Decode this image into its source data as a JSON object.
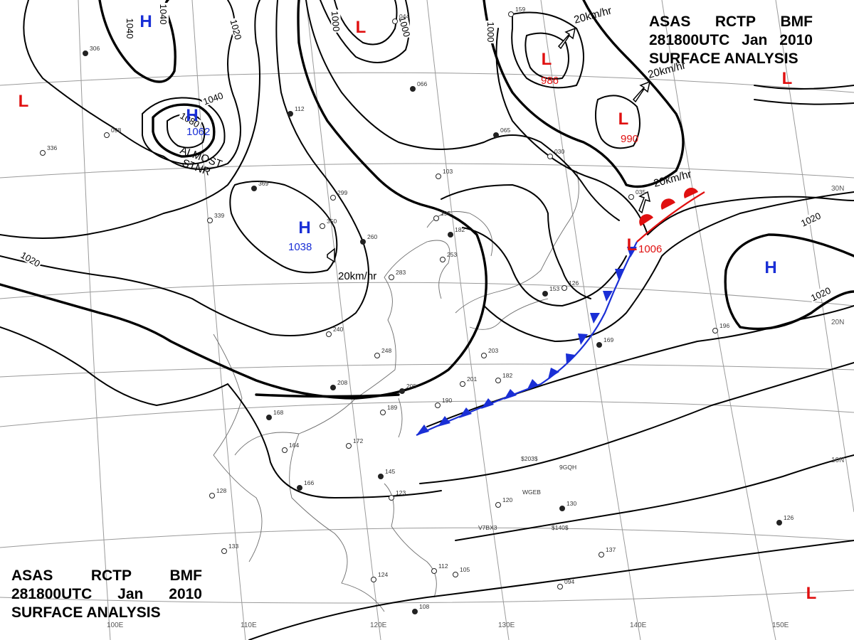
{
  "header": {
    "line1": [
      "ASAS",
      "RCTP",
      "BMF"
    ],
    "line2": [
      "281800UTC",
      "Jan",
      "2010"
    ],
    "line3": "SURFACE ANALYSIS"
  },
  "colors": {
    "high": "#1a2fd6",
    "low": "#e01010",
    "cold_front": "#1a2fd6",
    "warm_front": "#e01010",
    "isobar": "#000000",
    "grid": "#9a9a9a"
  },
  "pressure_systems": [
    {
      "kind": "high",
      "symbol": "H",
      "value": "1062"
    },
    {
      "kind": "high",
      "symbol": "H",
      "value": "1038"
    },
    {
      "kind": "high",
      "symbol": "H",
      "value": ""
    },
    {
      "kind": "high",
      "symbol": "H",
      "value": ""
    },
    {
      "kind": "low",
      "symbol": "L",
      "value": "986"
    },
    {
      "kind": "low",
      "symbol": "L",
      "value": "990"
    },
    {
      "kind": "low",
      "symbol": "L",
      "value": "1006"
    },
    {
      "kind": "low",
      "symbol": "L",
      "value": ""
    },
    {
      "kind": "low",
      "symbol": "L",
      "value": ""
    },
    {
      "kind": "low",
      "symbol": "L",
      "value": ""
    },
    {
      "kind": "low",
      "symbol": "L",
      "value": ""
    }
  ],
  "isobar_labels": [
    "1040",
    "1040",
    "1040",
    "1020",
    "1000",
    "1000",
    "1000",
    "1020",
    "1020",
    "1020",
    "1080"
  ],
  "annotations": {
    "almost_stnr_1": "ALMOST",
    "almost_stnr_2": "STNR",
    "motion": [
      "20km/hr",
      "20km/hr",
      "20km/hr",
      "20km/hr"
    ]
  },
  "grid_labels": {
    "longitudes": [
      "100E",
      "110E",
      "120E",
      "130E",
      "140E",
      "150E"
    ],
    "latitudes": [
      "30N",
      "20N",
      "10N"
    ]
  },
  "stations": [
    "306",
    "336",
    "339",
    "369",
    "350",
    "299",
    "260",
    "283",
    "195",
    "182",
    "253",
    "126",
    "153",
    "240",
    "248",
    "208",
    "201",
    "203",
    "169",
    "196",
    "182",
    "205",
    "189",
    "190",
    "168",
    "164",
    "172",
    "166",
    "128",
    "133",
    "145",
    "123",
    "120",
    "130",
    "112",
    "105",
    "108",
    "124",
    "137",
    "126",
    "094",
    "098",
    "066",
    "044",
    "103",
    "065",
    "030",
    "035",
    "112",
    "159"
  ],
  "ship_ids": [
    "$203$",
    "9GQH",
    "WGEB",
    "V7BX3",
    "$140$"
  ]
}
